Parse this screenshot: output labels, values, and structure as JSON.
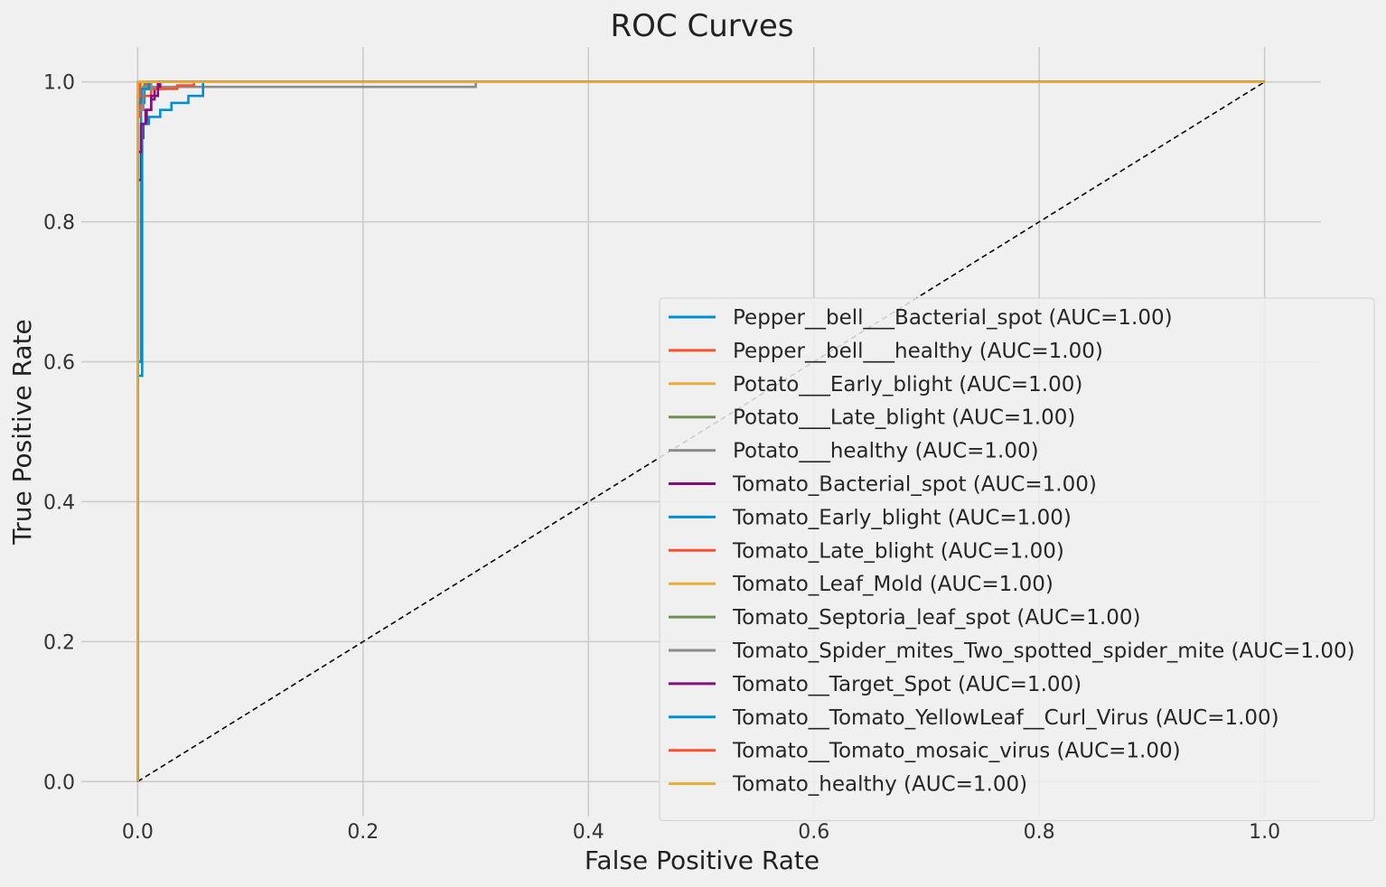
{
  "chart_data": {
    "type": "line",
    "title": "ROC Curves",
    "xlabel": "False Positive Rate",
    "ylabel": "True Positive Rate",
    "xlim": [
      -0.05,
      1.05
    ],
    "ylim": [
      -0.05,
      1.05
    ],
    "xticks": [
      0.0,
      0.2,
      0.4,
      0.6,
      0.8,
      1.0
    ],
    "yticks": [
      0.0,
      0.2,
      0.4,
      0.6,
      0.8,
      1.0
    ],
    "xtick_labels": [
      "0.0",
      "0.2",
      "0.4",
      "0.6",
      "0.8",
      "1.0"
    ],
    "ytick_labels": [
      "0.0",
      "0.2",
      "0.4",
      "0.6",
      "0.8",
      "1.0"
    ],
    "grid": true,
    "legend_position": "lower-right",
    "diagonal": {
      "x": [
        0,
        1
      ],
      "y": [
        0,
        1
      ],
      "color": "#000000",
      "style": "dashed"
    },
    "series": [
      {
        "name": "Pepper__bell___Bacterial_spot (AUC=1.00)",
        "color": "#008fd5",
        "x": [
          0,
          0,
          0.003,
          0.003,
          0.006,
          0.006,
          0.01,
          0.01,
          1
        ],
        "y": [
          0,
          0.6,
          0.6,
          0.97,
          0.97,
          0.99,
          0.99,
          1,
          1
        ]
      },
      {
        "name": "Pepper__bell___healthy (AUC=1.00)",
        "color": "#fc4f30",
        "x": [
          0,
          0,
          0.002,
          0.002,
          0.008,
          0.008,
          1
        ],
        "y": [
          0,
          0.95,
          0.95,
          0.99,
          0.99,
          1,
          1
        ]
      },
      {
        "name": "Potato___Early_blight (AUC=1.00)",
        "color": "#e5ae38",
        "x": [
          0,
          0,
          0.002,
          0.002,
          1
        ],
        "y": [
          0,
          0.98,
          0.98,
          1,
          1
        ]
      },
      {
        "name": "Potato___Late_blight (AUC=1.00)",
        "color": "#6d904f",
        "x": [
          0,
          0,
          0.003,
          0.003,
          0.006,
          0.006,
          1
        ],
        "y": [
          0,
          0.97,
          0.97,
          0.99,
          0.99,
          1,
          1
        ]
      },
      {
        "name": "Potato___healthy (AUC=1.00)",
        "color": "#8b8b8b",
        "x": [
          0,
          0,
          0.005,
          0.005,
          0.3,
          0.3,
          1
        ],
        "y": [
          0,
          0.97,
          0.97,
          0.993,
          0.993,
          1,
          1
        ]
      },
      {
        "name": "Tomato_Bacterial_spot (AUC=1.00)",
        "color": "#810f7c",
        "x": [
          0,
          0,
          0.003,
          0.003,
          0.005,
          0.005,
          0.008,
          0.008,
          0.012,
          0.012,
          0.015,
          0.015,
          0.02,
          0.02,
          1
        ],
        "y": [
          0,
          0.86,
          0.86,
          0.92,
          0.92,
          0.94,
          0.94,
          0.96,
          0.96,
          0.975,
          0.975,
          0.99,
          0.99,
          1,
          1
        ]
      },
      {
        "name": "Tomato_Early_blight (AUC=1.00)",
        "color": "#008fd5",
        "x": [
          0,
          0,
          0.004,
          0.004,
          0.01,
          0.01,
          0.02,
          0.02,
          0.03,
          0.03,
          0.045,
          0.045,
          0.058,
          0.058,
          1
        ],
        "y": [
          0,
          0.58,
          0.58,
          0.94,
          0.94,
          0.95,
          0.95,
          0.96,
          0.96,
          0.97,
          0.97,
          0.98,
          0.98,
          1,
          1
        ]
      },
      {
        "name": "Tomato_Late_blight (AUC=1.00)",
        "color": "#fc4f30",
        "x": [
          0,
          0,
          0.005,
          0.005,
          0.012,
          0.012,
          0.035,
          0.035,
          0.05,
          0.05,
          1
        ],
        "y": [
          0,
          0.96,
          0.96,
          0.98,
          0.98,
          0.99,
          0.99,
          0.995,
          0.995,
          1,
          1
        ]
      },
      {
        "name": "Tomato_Leaf_Mold (AUC=1.00)",
        "color": "#e5ae38",
        "x": [
          0,
          0,
          0.003,
          0.003,
          1
        ],
        "y": [
          0,
          0.99,
          0.99,
          1,
          1
        ]
      },
      {
        "name": "Tomato_Septoria_leaf_spot (AUC=1.00)",
        "color": "#6d904f",
        "x": [
          0,
          0,
          0.004,
          0.004,
          0.01,
          0.01,
          1
        ],
        "y": [
          0,
          0.97,
          0.97,
          0.99,
          0.99,
          1,
          1
        ]
      },
      {
        "name": "Tomato_Spider_mites_Two_spotted_spider_mite (AUC=1.00)",
        "color": "#8b8b8b",
        "x": [
          0,
          0,
          0.004,
          0.004,
          0.012,
          0.012,
          1
        ],
        "y": [
          0,
          0.96,
          0.96,
          0.99,
          0.99,
          1,
          1
        ]
      },
      {
        "name": "Tomato__Target_Spot (AUC=1.00)",
        "color": "#810f7c",
        "x": [
          0,
          0,
          0.003,
          0.003,
          0.007,
          0.007,
          0.012,
          0.012,
          0.018,
          0.018,
          1
        ],
        "y": [
          0,
          0.9,
          0.9,
          0.94,
          0.94,
          0.96,
          0.96,
          0.98,
          0.98,
          1,
          1
        ]
      },
      {
        "name": "Tomato__Tomato_YellowLeaf__Curl_Virus (AUC=1.00)",
        "color": "#008fd5",
        "x": [
          0,
          0,
          0.003,
          0.003,
          0.01,
          0.01,
          1
        ],
        "y": [
          0,
          0.97,
          0.97,
          0.99,
          0.99,
          1,
          1
        ]
      },
      {
        "name": "Tomato__Tomato_mosaic_virus (AUC=1.00)",
        "color": "#fc4f30",
        "x": [
          0,
          0,
          0.002,
          0.002,
          1
        ],
        "y": [
          0,
          0.98,
          0.98,
          1,
          1
        ]
      },
      {
        "name": "Tomato_healthy (AUC=1.00)",
        "color": "#e5ae38",
        "x": [
          0,
          0,
          1
        ],
        "y": [
          0,
          1,
          1
        ]
      }
    ]
  }
}
